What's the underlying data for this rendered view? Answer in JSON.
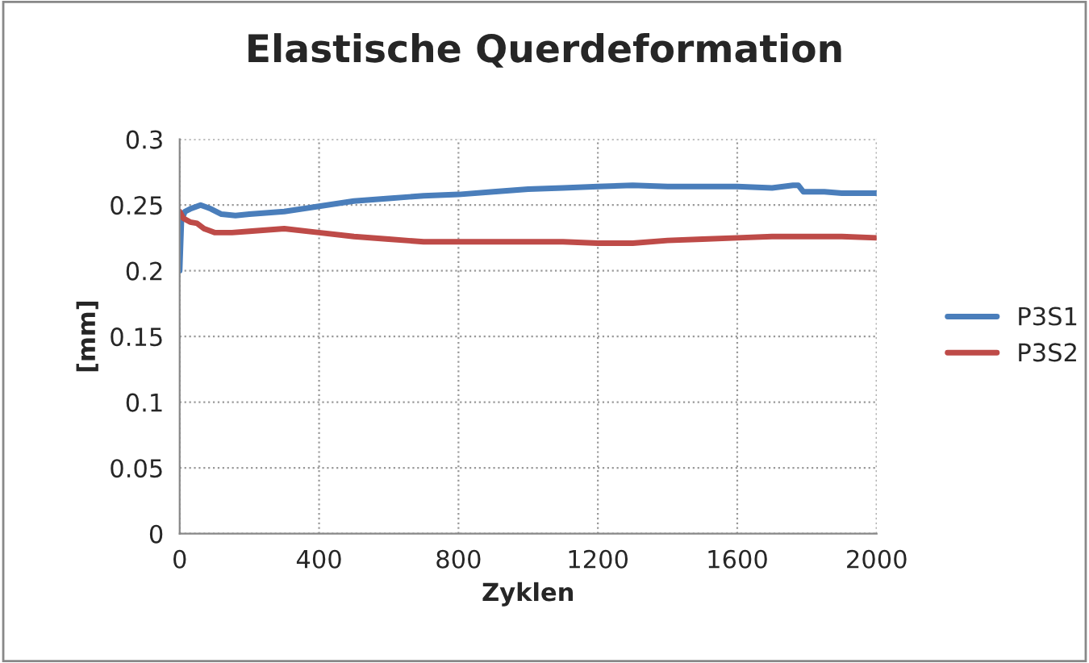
{
  "chart_data": {
    "type": "line",
    "title": "Elastische Querdeformation",
    "xlabel": "Zyklen",
    "ylabel": "[mm]",
    "xlim": [
      0,
      2000
    ],
    "xticks": [
      0,
      400,
      800,
      1200,
      1600,
      2000
    ],
    "ylim": [
      0,
      0.3
    ],
    "yticks": [
      0,
      0.05,
      0.1,
      0.15,
      0.2,
      0.25,
      0.3
    ],
    "grid": true,
    "legend": "right",
    "marker": "none",
    "line_style": "solid",
    "series": [
      {
        "name": "P3S1",
        "color": "#4a7ebb",
        "x": [
          0,
          5,
          15,
          30,
          60,
          90,
          120,
          160,
          200,
          300,
          400,
          500,
          600,
          700,
          800,
          900,
          1000,
          1100,
          1200,
          1300,
          1400,
          1500,
          1600,
          1700,
          1760,
          1775,
          1790,
          1850,
          1900,
          2000
        ],
        "values": [
          0.2,
          0.238,
          0.245,
          0.247,
          0.25,
          0.247,
          0.243,
          0.242,
          0.243,
          0.245,
          0.249,
          0.253,
          0.255,
          0.257,
          0.258,
          0.26,
          0.262,
          0.263,
          0.264,
          0.265,
          0.264,
          0.264,
          0.264,
          0.263,
          0.265,
          0.265,
          0.26,
          0.26,
          0.259,
          0.259
        ]
      },
      {
        "name": "P3S2",
        "color": "#be4b48",
        "x": [
          0,
          10,
          30,
          50,
          70,
          100,
          150,
          200,
          300,
          400,
          500,
          600,
          700,
          800,
          900,
          1000,
          1100,
          1200,
          1300,
          1400,
          1500,
          1600,
          1700,
          1800,
          1900,
          2000
        ],
        "values": [
          0.245,
          0.24,
          0.237,
          0.236,
          0.232,
          0.229,
          0.229,
          0.23,
          0.232,
          0.229,
          0.226,
          0.224,
          0.222,
          0.222,
          0.222,
          0.222,
          0.222,
          0.221,
          0.221,
          0.223,
          0.224,
          0.225,
          0.226,
          0.226,
          0.226,
          0.225
        ]
      }
    ]
  }
}
